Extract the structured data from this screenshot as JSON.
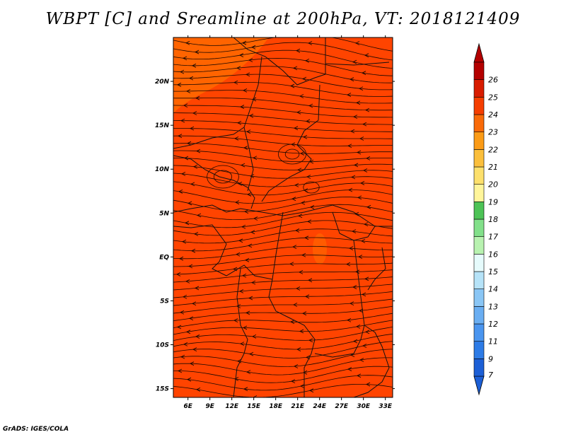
{
  "title": "WBPT [C] and Sreamline at 200hPa, VT: 2018121409",
  "footer": "GrADS: IGES/COLA",
  "map": {
    "lon_range": [
      4,
      34
    ],
    "lat_range": [
      -16,
      25
    ],
    "background_color": "#ff4400",
    "warm_patch_color": "#ff6a00",
    "lon_ticks": [
      "6E",
      "9E",
      "12E",
      "15E",
      "18E",
      "21E",
      "24E",
      "27E",
      "30E",
      "33E"
    ],
    "lat_ticks": [
      "20N",
      "15N",
      "10N",
      "5N",
      "EQ",
      "5S",
      "10S",
      "15S"
    ]
  },
  "colorbar": {
    "labels": [
      "7",
      "9",
      "11",
      "12",
      "13",
      "14",
      "15",
      "16",
      "17",
      "18",
      "19",
      "20",
      "21",
      "22",
      "23",
      "24",
      "25",
      "26"
    ],
    "colors": [
      "#1c5fd6",
      "#2d7be6",
      "#4a95ef",
      "#6aaef2",
      "#8ac6f5",
      "#b6e3f8",
      "#e6fbfc",
      "#b8f2b0",
      "#82e08a",
      "#4dc356",
      "#fff59a",
      "#fde06c",
      "#fbbf3c",
      "#fb9b16",
      "#f96a08",
      "#f53e00",
      "#d81c00",
      "#b40000"
    ],
    "lower_arrow_color": "#1c5fd6",
    "upper_arrow_color": "#b40000"
  }
}
